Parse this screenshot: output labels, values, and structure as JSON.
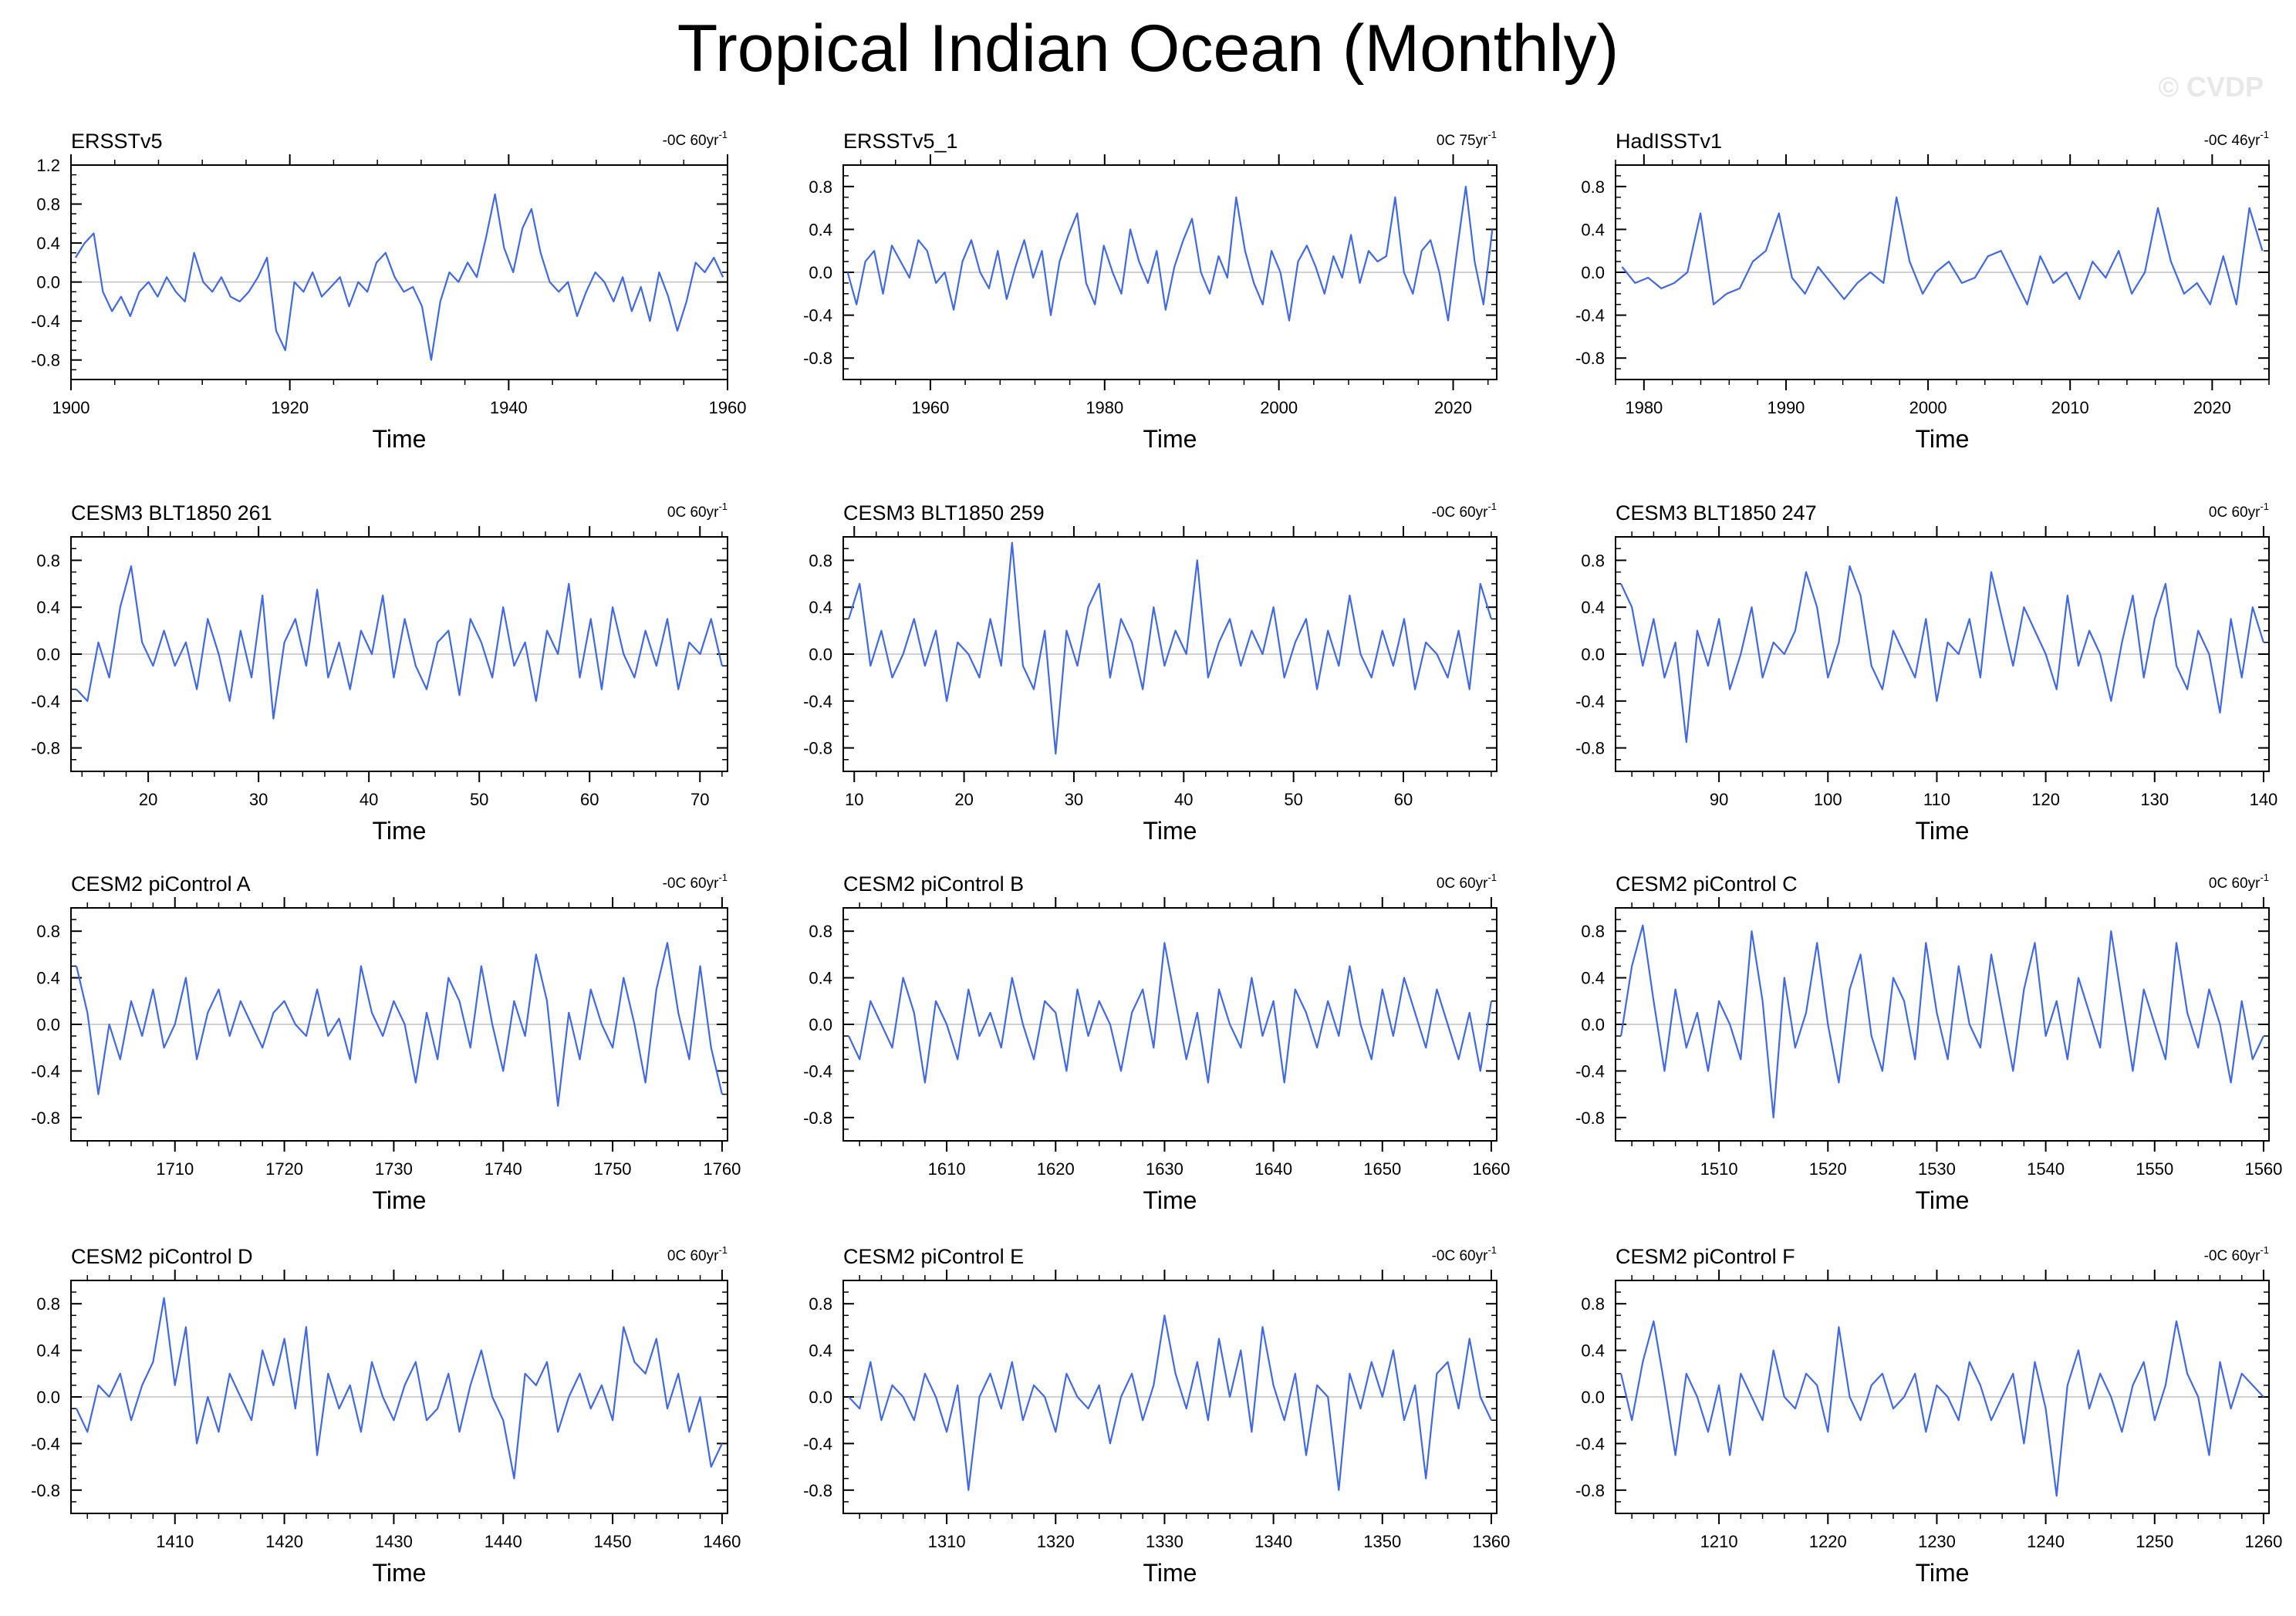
{
  "title": "Tropical Indian Ocean (Monthly)",
  "watermark": "© CVDP",
  "line_color": "#4169e1",
  "chart_data": [
    {
      "type": "line",
      "title": "ERSSTv5",
      "trend": "-0C 60yr",
      "trend_exp": "-1",
      "xlabel": "Time",
      "xlim": [
        1900,
        1960
      ],
      "xticks": [
        1900,
        1920,
        1940,
        1960
      ],
      "ylim": [
        -1.0,
        1.2
      ],
      "yticks": [
        -0.8,
        -0.4,
        0.0,
        0.4,
        0.8,
        1.2
      ],
      "ytick_labels": [
        "-0.8",
        "-0.4",
        "0.0",
        "0.4",
        "0.8",
        "1.2"
      ],
      "y": [
        0.25,
        0.4,
        0.5,
        -0.1,
        -0.3,
        -0.15,
        -0.35,
        -0.1,
        0.0,
        -0.15,
        0.05,
        -0.1,
        -0.2,
        0.3,
        0.0,
        -0.1,
        0.05,
        -0.15,
        -0.2,
        -0.1,
        0.05,
        0.25,
        -0.5,
        -0.7,
        0.0,
        -0.1,
        0.1,
        -0.15,
        -0.05,
        0.05,
        -0.25,
        0.0,
        -0.1,
        0.2,
        0.3,
        0.05,
        -0.1,
        -0.05,
        -0.25,
        -0.8,
        -0.2,
        0.1,
        0.0,
        0.2,
        0.05,
        0.45,
        0.9,
        0.35,
        0.1,
        0.55,
        0.75,
        0.3,
        0.0,
        -0.1,
        0.0,
        -0.35,
        -0.1,
        0.1,
        0.0,
        -0.2,
        0.05,
        -0.3,
        -0.05,
        -0.4,
        0.1,
        -0.15,
        -0.5,
        -0.2,
        0.2,
        0.1,
        0.25,
        0.05
      ]
    },
    {
      "type": "line",
      "title": "ERSSTv5_1",
      "trend": "0C 75yr",
      "trend_exp": "-1",
      "xlabel": "Time",
      "xlim": [
        1950,
        2025
      ],
      "xticks": [
        1960,
        1980,
        2000,
        2020
      ],
      "ylim": [
        -1.0,
        1.0
      ],
      "yticks": [
        -0.8,
        -0.4,
        0.0,
        0.4,
        0.8
      ],
      "ytick_labels": [
        "-0.8",
        "-0.4",
        "0.0",
        "0.4",
        "0.8"
      ],
      "y": [
        0.0,
        -0.3,
        0.1,
        0.2,
        -0.2,
        0.25,
        0.1,
        -0.05,
        0.3,
        0.2,
        -0.1,
        0.0,
        -0.35,
        0.1,
        0.3,
        0.0,
        -0.15,
        0.2,
        -0.25,
        0.05,
        0.3,
        -0.05,
        0.2,
        -0.4,
        0.1,
        0.35,
        0.55,
        -0.1,
        -0.3,
        0.25,
        0.0,
        -0.2,
        0.4,
        0.1,
        -0.1,
        0.2,
        -0.35,
        0.05,
        0.3,
        0.5,
        0.0,
        -0.2,
        0.15,
        -0.05,
        0.7,
        0.2,
        -0.1,
        -0.3,
        0.2,
        0.0,
        -0.45,
        0.1,
        0.25,
        0.05,
        -0.2,
        0.15,
        -0.05,
        0.35,
        -0.1,
        0.2,
        0.1,
        0.15,
        0.7,
        0.0,
        -0.2,
        0.2,
        0.3,
        0.0,
        -0.45,
        0.2,
        0.8,
        0.1,
        -0.3,
        0.4
      ]
    },
    {
      "type": "line",
      "title": "HadISSTv1",
      "trend": "-0C 46yr",
      "trend_exp": "-1",
      "xlabel": "Time",
      "xlim": [
        1978,
        2024
      ],
      "xticks": [
        1980,
        1990,
        2000,
        2010,
        2020
      ],
      "ylim": [
        -1.0,
        1.0
      ],
      "yticks": [
        -0.8,
        -0.4,
        0.0,
        0.4,
        0.8
      ],
      "ytick_labels": [
        "-0.8",
        "-0.4",
        "0.0",
        "0.4",
        "0.8"
      ],
      "y": [
        0.05,
        -0.1,
        -0.05,
        -0.15,
        -0.1,
        0.0,
        0.55,
        -0.3,
        -0.2,
        -0.15,
        0.1,
        0.2,
        0.55,
        -0.05,
        -0.2,
        0.05,
        -0.1,
        -0.25,
        -0.1,
        0.0,
        -0.1,
        0.7,
        0.1,
        -0.2,
        0.0,
        0.1,
        -0.1,
        -0.05,
        0.15,
        0.2,
        -0.05,
        -0.3,
        0.15,
        -0.1,
        0.0,
        -0.25,
        0.1,
        -0.05,
        0.2,
        -0.2,
        0.0,
        0.6,
        0.1,
        -0.2,
        -0.1,
        -0.3,
        0.15,
        -0.3,
        0.6,
        0.2
      ]
    },
    {
      "type": "line",
      "title": "CESM3 BLT1850 261",
      "trend": "0C 60yr",
      "trend_exp": "-1",
      "xlabel": "Time",
      "xlim": [
        13,
        72.5
      ],
      "xticks": [
        20,
        30,
        40,
        50,
        60,
        70
      ],
      "ylim": [
        -1.0,
        1.0
      ],
      "yticks": [
        -0.8,
        -0.4,
        0.0,
        0.4,
        0.8
      ],
      "ytick_labels": [
        "-0.8",
        "-0.4",
        "0.0",
        "0.4",
        "0.8"
      ],
      "y": [
        -0.3,
        -0.4,
        0.1,
        -0.2,
        0.4,
        0.75,
        0.1,
        -0.1,
        0.2,
        -0.1,
        0.1,
        -0.3,
        0.3,
        0.0,
        -0.4,
        0.2,
        -0.2,
        0.5,
        -0.55,
        0.1,
        0.3,
        -0.1,
        0.55,
        -0.2,
        0.1,
        -0.3,
        0.2,
        0.0,
        0.5,
        -0.2,
        0.3,
        -0.1,
        -0.3,
        0.1,
        0.2,
        -0.35,
        0.3,
        0.1,
        -0.2,
        0.4,
        -0.1,
        0.1,
        -0.4,
        0.2,
        0.0,
        0.6,
        -0.2,
        0.3,
        -0.3,
        0.4,
        0.0,
        -0.2,
        0.2,
        -0.1,
        0.3,
        -0.3,
        0.1,
        0.0,
        0.3,
        -0.1
      ]
    },
    {
      "type": "line",
      "title": "CESM3 BLT1850 259",
      "trend": "-0C 60yr",
      "trend_exp": "-1",
      "xlabel": "Time",
      "xlim": [
        9,
        68.5
      ],
      "xticks": [
        10,
        20,
        30,
        40,
        50,
        60
      ],
      "ylim": [
        -1.0,
        1.0
      ],
      "yticks": [
        -0.8,
        -0.4,
        0.0,
        0.4,
        0.8
      ],
      "ytick_labels": [
        "-0.8",
        "-0.4",
        "0.0",
        "0.4",
        "0.8"
      ],
      "y": [
        0.3,
        0.6,
        -0.1,
        0.2,
        -0.2,
        0.0,
        0.3,
        -0.1,
        0.2,
        -0.4,
        0.1,
        0.0,
        -0.2,
        0.3,
        -0.1,
        0.95,
        -0.1,
        -0.3,
        0.2,
        -0.85,
        0.2,
        -0.1,
        0.4,
        0.6,
        -0.2,
        0.3,
        0.1,
        -0.3,
        0.4,
        -0.1,
        0.2,
        0.0,
        0.8,
        -0.2,
        0.1,
        0.3,
        -0.1,
        0.2,
        0.0,
        0.4,
        -0.2,
        0.1,
        0.3,
        -0.3,
        0.2,
        -0.1,
        0.5,
        0.0,
        -0.2,
        0.2,
        -0.1,
        0.3,
        -0.3,
        0.1,
        0.0,
        -0.2,
        0.2,
        -0.3,
        0.6,
        0.3
      ]
    },
    {
      "type": "line",
      "title": "CESM3 BLT1850 247",
      "trend": "0C 60yr",
      "trend_exp": "-1",
      "xlabel": "Time",
      "xlim": [
        80.5,
        140.5
      ],
      "xticks": [
        90,
        100,
        110,
        120,
        130,
        140
      ],
      "ylim": [
        -1.0,
        1.0
      ],
      "yticks": [
        -0.8,
        -0.4,
        0.0,
        0.4,
        0.8
      ],
      "ytick_labels": [
        "-0.8",
        "-0.4",
        "0.0",
        "0.4",
        "0.8"
      ],
      "y": [
        0.6,
        0.4,
        -0.1,
        0.3,
        -0.2,
        0.1,
        -0.75,
        0.2,
        -0.1,
        0.3,
        -0.3,
        0.0,
        0.4,
        -0.2,
        0.1,
        0.0,
        0.2,
        0.7,
        0.4,
        -0.2,
        0.1,
        0.75,
        0.5,
        -0.1,
        -0.3,
        0.2,
        0.0,
        -0.2,
        0.3,
        -0.4,
        0.1,
        0.0,
        0.3,
        -0.2,
        0.7,
        0.3,
        -0.1,
        0.4,
        0.2,
        0.0,
        -0.3,
        0.5,
        -0.1,
        0.2,
        0.0,
        -0.4,
        0.1,
        0.5,
        -0.2,
        0.3,
        0.6,
        -0.1,
        -0.3,
        0.2,
        0.0,
        -0.5,
        0.3,
        -0.2,
        0.4,
        0.1
      ]
    },
    {
      "type": "line",
      "title": "CESM2 piControl A",
      "trend": "-0C 60yr",
      "trend_exp": "-1",
      "xlabel": "Time",
      "xlim": [
        1700.5,
        1760.5
      ],
      "xticks": [
        1710,
        1720,
        1730,
        1740,
        1750,
        1760
      ],
      "ylim": [
        -1.0,
        1.0
      ],
      "yticks": [
        -0.8,
        -0.4,
        0.0,
        0.4,
        0.8
      ],
      "ytick_labels": [
        "-0.8",
        "-0.4",
        "0.0",
        "0.4",
        "0.8"
      ],
      "y": [
        0.5,
        0.1,
        -0.6,
        0.0,
        -0.3,
        0.2,
        -0.1,
        0.3,
        -0.2,
        0.0,
        0.4,
        -0.3,
        0.1,
        0.3,
        -0.1,
        0.2,
        0.0,
        -0.2,
        0.1,
        0.2,
        0.0,
        -0.1,
        0.3,
        -0.1,
        0.05,
        -0.3,
        0.5,
        0.1,
        -0.1,
        0.2,
        0.0,
        -0.5,
        0.1,
        -0.3,
        0.4,
        0.2,
        -0.2,
        0.5,
        0.0,
        -0.4,
        0.2,
        -0.1,
        0.6,
        0.2,
        -0.7,
        0.1,
        -0.3,
        0.3,
        0.0,
        -0.2,
        0.4,
        0.0,
        -0.5,
        0.3,
        0.7,
        0.1,
        -0.3,
        0.5,
        -0.2,
        -0.6
      ]
    },
    {
      "type": "line",
      "title": "CESM2 piControl B",
      "trend": "0C 60yr",
      "trend_exp": "-1",
      "xlabel": "Time",
      "xlim": [
        1600.5,
        1660.5
      ],
      "xticks": [
        1610,
        1620,
        1630,
        1640,
        1650,
        1660
      ],
      "ylim": [
        -1.0,
        1.0
      ],
      "yticks": [
        -0.8,
        -0.4,
        0.0,
        0.4,
        0.8
      ],
      "ytick_labels": [
        "-0.8",
        "-0.4",
        "0.0",
        "0.4",
        "0.8"
      ],
      "y": [
        -0.1,
        -0.3,
        0.2,
        0.0,
        -0.2,
        0.4,
        0.1,
        -0.5,
        0.2,
        0.0,
        -0.3,
        0.3,
        -0.1,
        0.1,
        -0.2,
        0.4,
        0.0,
        -0.3,
        0.2,
        0.1,
        -0.4,
        0.3,
        -0.1,
        0.2,
        0.0,
        -0.4,
        0.1,
        0.3,
        -0.2,
        0.7,
        0.2,
        -0.3,
        0.1,
        -0.5,
        0.3,
        0.0,
        -0.2,
        0.4,
        -0.1,
        0.2,
        -0.5,
        0.3,
        0.1,
        -0.2,
        0.2,
        -0.1,
        0.5,
        0.0,
        -0.3,
        0.3,
        -0.1,
        0.4,
        0.1,
        -0.2,
        0.3,
        0.0,
        -0.3,
        0.1,
        -0.4,
        0.2
      ]
    },
    {
      "type": "line",
      "title": "CESM2 piControl C",
      "trend": "0C 60yr",
      "trend_exp": "-1",
      "xlabel": "Time",
      "xlim": [
        1500.5,
        1560.5
      ],
      "xticks": [
        1510,
        1520,
        1530,
        1540,
        1550,
        1560
      ],
      "ylim": [
        -1.0,
        1.0
      ],
      "yticks": [
        -0.8,
        -0.4,
        0.0,
        0.4,
        0.8
      ],
      "ytick_labels": [
        "-0.8",
        "-0.4",
        "0.0",
        "0.4",
        "0.8"
      ],
      "y": [
        -0.1,
        0.5,
        0.85,
        0.2,
        -0.4,
        0.3,
        -0.2,
        0.1,
        -0.4,
        0.2,
        0.0,
        -0.3,
        0.8,
        0.2,
        -0.8,
        0.4,
        -0.2,
        0.1,
        0.7,
        0.0,
        -0.5,
        0.3,
        0.6,
        -0.1,
        -0.4,
        0.4,
        0.2,
        -0.3,
        0.7,
        0.1,
        -0.3,
        0.5,
        0.0,
        -0.2,
        0.6,
        0.1,
        -0.4,
        0.3,
        0.7,
        -0.1,
        0.2,
        -0.3,
        0.4,
        0.1,
        -0.2,
        0.8,
        0.2,
        -0.4,
        0.3,
        0.0,
        -0.3,
        0.7,
        0.1,
        -0.2,
        0.3,
        0.0,
        -0.5,
        0.2,
        -0.3,
        -0.1
      ]
    },
    {
      "type": "line",
      "title": "CESM2 piControl D",
      "trend": "0C 60yr",
      "trend_exp": "-1",
      "xlabel": "Time",
      "xlim": [
        1400.5,
        1460.5
      ],
      "xticks": [
        1410,
        1420,
        1430,
        1440,
        1450,
        1460
      ],
      "ylim": [
        -1.0,
        1.0
      ],
      "yticks": [
        -0.8,
        -0.4,
        0.0,
        0.4,
        0.8
      ],
      "ytick_labels": [
        "-0.8",
        "-0.4",
        "0.0",
        "0.4",
        "0.8"
      ],
      "y": [
        -0.1,
        -0.3,
        0.1,
        0.0,
        0.2,
        -0.2,
        0.1,
        0.3,
        0.85,
        0.1,
        0.6,
        -0.4,
        0.0,
        -0.3,
        0.2,
        0.0,
        -0.2,
        0.4,
        0.1,
        0.5,
        -0.1,
        0.6,
        -0.5,
        0.2,
        -0.1,
        0.1,
        -0.3,
        0.3,
        0.0,
        -0.2,
        0.1,
        0.3,
        -0.2,
        -0.1,
        0.2,
        -0.3,
        0.1,
        0.4,
        0.0,
        -0.2,
        -0.7,
        0.2,
        0.1,
        0.3,
        -0.3,
        0.0,
        0.2,
        -0.1,
        0.1,
        -0.2,
        0.6,
        0.3,
        0.2,
        0.5,
        -0.1,
        0.2,
        -0.3,
        0.0,
        -0.6,
        -0.4
      ]
    },
    {
      "type": "line",
      "title": "CESM2 piControl E",
      "trend": "-0C 60yr",
      "trend_exp": "-1",
      "xlabel": "Time",
      "xlim": [
        1300.5,
        1360.5
      ],
      "xticks": [
        1310,
        1320,
        1330,
        1340,
        1350,
        1360
      ],
      "ylim": [
        -1.0,
        1.0
      ],
      "yticks": [
        -0.8,
        -0.4,
        0.0,
        0.4,
        0.8
      ],
      "ytick_labels": [
        "-0.8",
        "-0.4",
        "0.0",
        "0.4",
        "0.8"
      ],
      "y": [
        0.0,
        -0.1,
        0.3,
        -0.2,
        0.1,
        0.0,
        -0.2,
        0.2,
        0.0,
        -0.3,
        0.1,
        -0.8,
        0.0,
        0.2,
        -0.1,
        0.3,
        -0.2,
        0.1,
        0.0,
        -0.3,
        0.2,
        0.0,
        -0.1,
        0.1,
        -0.4,
        0.0,
        0.2,
        -0.2,
        0.1,
        0.7,
        0.2,
        -0.1,
        0.3,
        -0.2,
        0.5,
        0.0,
        0.4,
        -0.3,
        0.6,
        0.1,
        -0.2,
        0.2,
        -0.5,
        0.1,
        0.0,
        -0.8,
        0.2,
        -0.1,
        0.3,
        0.0,
        0.4,
        -0.2,
        0.1,
        -0.7,
        0.2,
        0.3,
        -0.1,
        0.5,
        0.0,
        -0.2
      ]
    },
    {
      "type": "line",
      "title": "CESM2 piControl F",
      "trend": "-0C 60yr",
      "trend_exp": "-1",
      "xlabel": "Time",
      "xlim": [
        1200.5,
        1260.5
      ],
      "xticks": [
        1210,
        1220,
        1230,
        1240,
        1250,
        1260
      ],
      "ylim": [
        -1.0,
        1.0
      ],
      "yticks": [
        -0.8,
        -0.4,
        0.0,
        0.4,
        0.8
      ],
      "ytick_labels": [
        "-0.8",
        "-0.4",
        "0.0",
        "0.4",
        "0.8"
      ],
      "y": [
        0.2,
        -0.2,
        0.3,
        0.65,
        0.1,
        -0.5,
        0.2,
        0.0,
        -0.3,
        0.1,
        -0.5,
        0.2,
        0.0,
        -0.2,
        0.4,
        0.0,
        -0.1,
        0.2,
        0.1,
        -0.3,
        0.6,
        0.0,
        -0.2,
        0.1,
        0.2,
        -0.1,
        0.0,
        0.2,
        -0.3,
        0.1,
        0.0,
        -0.2,
        0.3,
        0.1,
        -0.2,
        0.0,
        0.2,
        -0.4,
        0.3,
        -0.1,
        -0.85,
        0.1,
        0.4,
        -0.1,
        0.2,
        0.0,
        -0.3,
        0.1,
        0.3,
        -0.2,
        0.1,
        0.65,
        0.2,
        0.0,
        -0.5,
        0.3,
        -0.1,
        0.2,
        0.1,
        0.0
      ]
    }
  ]
}
